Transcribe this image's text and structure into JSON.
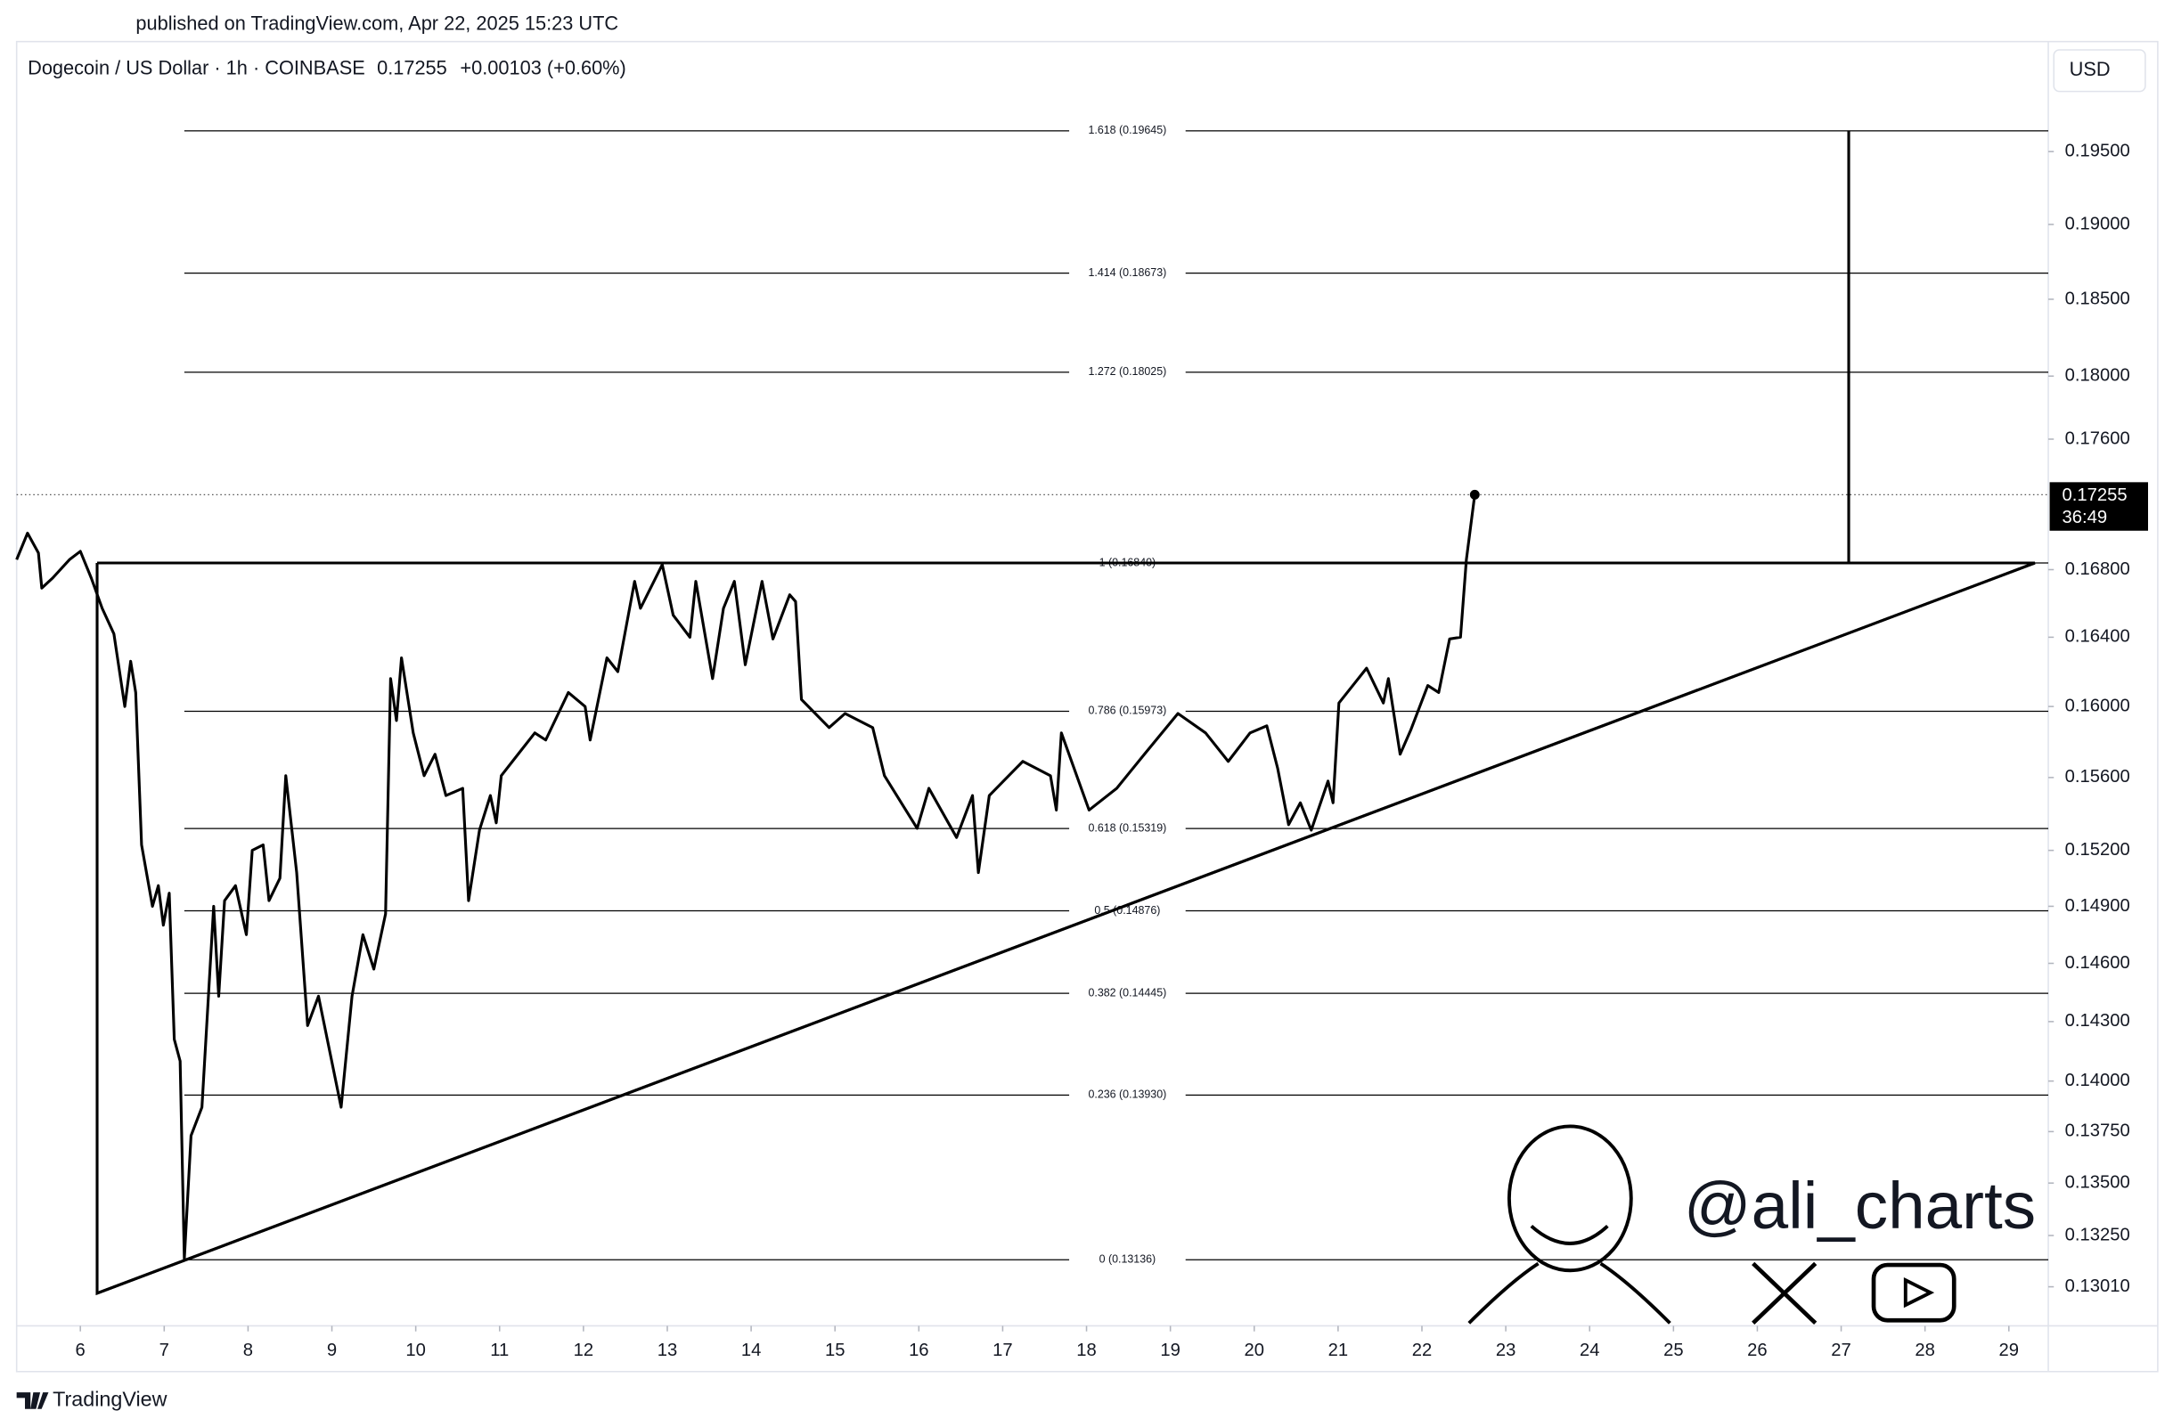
{
  "chart_data": {
    "type": "line",
    "published": "published on TradingView.com, Apr 22, 2025 15:23 UTC",
    "title": "Dogecoin / US Dollar · 1h · COINBASE",
    "last_price": 0.17255,
    "change": "+0.00103 (+0.60%)",
    "currency": "USD",
    "countdown": "36:49",
    "brand": "TradingView",
    "watermark": "@ali_charts",
    "log_scale": true,
    "color": "#000000",
    "xlim": [
      5.24,
      29.47
    ],
    "xticks": [
      6,
      7,
      8,
      9,
      10,
      11,
      12,
      13,
      14,
      15,
      16,
      17,
      18,
      19,
      20,
      21,
      22,
      23,
      24,
      25,
      26,
      27,
      28,
      29
    ],
    "ylim": [
      0.1283,
      0.2028
    ],
    "yticks": [
      {
        "value": 0.195,
        "label": "0.19500"
      },
      {
        "value": 0.19,
        "label": "0.19000"
      },
      {
        "value": 0.185,
        "label": "0.18500"
      },
      {
        "value": 0.18,
        "label": "0.18000"
      },
      {
        "value": 0.176,
        "label": "0.17600"
      },
      {
        "value": 0.168,
        "label": "0.16800"
      },
      {
        "value": 0.164,
        "label": "0.16400"
      },
      {
        "value": 0.16,
        "label": "0.16000"
      },
      {
        "value": 0.156,
        "label": "0.15600"
      },
      {
        "value": 0.152,
        "label": "0.15200"
      },
      {
        "value": 0.149,
        "label": "0.14900"
      },
      {
        "value": 0.146,
        "label": "0.14600"
      },
      {
        "value": 0.143,
        "label": "0.14300"
      },
      {
        "value": 0.14,
        "label": "0.14000"
      },
      {
        "value": 0.1375,
        "label": "0.13750"
      },
      {
        "value": 0.135,
        "label": "0.13500"
      },
      {
        "value": 0.1325,
        "label": "0.13250"
      },
      {
        "value": 0.1301,
        "label": "0.13010"
      }
    ],
    "fib_x_start": 7.24,
    "fib_levels": [
      {
        "value": 0.19645,
        "label": "1.618 (0.19645)"
      },
      {
        "value": 0.18673,
        "label": "1.414 (0.18673)"
      },
      {
        "value": 0.18025,
        "label": "1.272 (0.18025)"
      },
      {
        "value": 0.1684,
        "label": "1 (0.16840)"
      },
      {
        "value": 0.15973,
        "label": "0.786 (0.15973)"
      },
      {
        "value": 0.15319,
        "label": "0.618 (0.15319)"
      },
      {
        "value": 0.14876,
        "label": "0.5 (0.14876)"
      },
      {
        "value": 0.14445,
        "label": "0.382 (0.14445)"
      },
      {
        "value": 0.1393,
        "label": "0.236 (0.13930)"
      },
      {
        "value": 0.13136,
        "label": "0 (0.13136)"
      }
    ],
    "shapes": [
      {
        "x": [
          6.2,
          29.31,
          6.2,
          6.2
        ],
        "y": [
          0.1684,
          0.1684,
          0.1298,
          0.1684
        ]
      },
      {
        "x": [
          6.2,
          29.31
        ],
        "y": [
          0.1298,
          0.1684
        ]
      },
      {
        "x": [
          27.09,
          27.09
        ],
        "y": [
          0.1684,
          0.19645
        ]
      }
    ],
    "x": [
      5.24,
      5.37,
      5.5,
      5.54,
      5.67,
      5.87,
      6.0,
      6.13,
      6.26,
      6.4,
      6.53,
      6.6,
      6.66,
      6.73,
      6.86,
      6.93,
      6.99,
      7.06,
      7.12,
      7.19,
      7.24,
      7.32,
      7.45,
      7.59,
      7.65,
      7.72,
      7.85,
      7.98,
      8.05,
      8.18,
      8.25,
      8.38,
      8.45,
      8.58,
      8.71,
      8.84,
      9.11,
      9.24,
      9.37,
      9.5,
      9.64,
      9.7,
      9.77,
      9.83,
      9.97,
      10.1,
      10.23,
      10.36,
      10.56,
      10.63,
      10.76,
      10.89,
      10.96,
      11.02,
      11.22,
      11.42,
      11.55,
      11.82,
      12.02,
      12.08,
      12.28,
      12.41,
      12.61,
      12.68,
      12.94,
      13.07,
      13.27,
      13.34,
      13.54,
      13.67,
      13.8,
      13.93,
      14.13,
      14.26,
      14.46,
      14.53,
      14.6,
      14.93,
      15.12,
      15.45,
      15.59,
      15.98,
      16.12,
      16.45,
      16.64,
      16.71,
      16.84,
      17.24,
      17.57,
      17.64,
      17.7,
      18.03,
      18.36,
      18.69,
      19.09,
      19.42,
      19.69,
      19.95,
      20.15,
      20.28,
      20.41,
      20.55,
      20.68,
      20.88,
      20.94,
      21.01,
      21.34,
      21.54,
      21.6,
      21.74,
      21.87,
      22.07,
      22.2,
      22.33,
      22.46,
      22.53,
      22.63
    ],
    "values": [
      0.1686,
      0.1702,
      0.169,
      0.1669,
      0.1675,
      0.1686,
      0.1691,
      0.1675,
      0.1657,
      0.1642,
      0.16,
      0.1626,
      0.1608,
      0.1523,
      0.149,
      0.1501,
      0.148,
      0.1497,
      0.1421,
      0.141,
      0.1314,
      0.1373,
      0.1387,
      0.149,
      0.1443,
      0.1493,
      0.1501,
      0.1475,
      0.152,
      0.1523,
      0.1493,
      0.1505,
      0.1561,
      0.1508,
      0.1428,
      0.1443,
      0.1387,
      0.1443,
      0.1475,
      0.1457,
      0.1486,
      0.1616,
      0.1592,
      0.1628,
      0.1585,
      0.1561,
      0.1573,
      0.155,
      0.1554,
      0.1493,
      0.1531,
      0.155,
      0.1535,
      0.1561,
      0.1573,
      0.1585,
      0.1581,
      0.1608,
      0.16,
      0.1581,
      0.1628,
      0.162,
      0.1673,
      0.1657,
      0.1683,
      0.1653,
      0.164,
      0.1673,
      0.1616,
      0.1657,
      0.1673,
      0.1624,
      0.1673,
      0.1639,
      0.1665,
      0.1661,
      0.1604,
      0.1588,
      0.1596,
      0.1588,
      0.1561,
      0.1532,
      0.1554,
      0.1527,
      0.155,
      0.1508,
      0.155,
      0.1569,
      0.1561,
      0.1542,
      0.1585,
      0.1542,
      0.1554,
      0.1573,
      0.1596,
      0.1585,
      0.1569,
      0.1585,
      0.1589,
      0.1565,
      0.1534,
      0.1546,
      0.1531,
      0.1558,
      0.1546,
      0.1602,
      0.1622,
      0.1602,
      0.1616,
      0.1573,
      0.1587,
      0.1612,
      0.1608,
      0.1639,
      0.164,
      0.1686,
      0.17255
    ]
  }
}
